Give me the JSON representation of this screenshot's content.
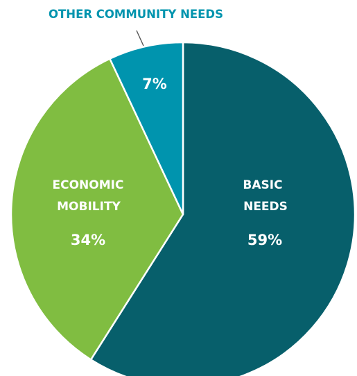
{
  "chart_data": {
    "type": "pie",
    "slices": [
      {
        "id": "basic",
        "label_lines": [
          "BASIC",
          "NEEDS"
        ],
        "pct_label": "59%",
        "value": 59,
        "color": "#075f6b"
      },
      {
        "id": "economic",
        "label_lines": [
          "ECONOMIC",
          "MOBILITY"
        ],
        "pct_label": "34%",
        "value": 34,
        "color": "#80bd41"
      },
      {
        "id": "other",
        "label_lines": [],
        "pct_label": "7%",
        "value": 7,
        "color": "#0094ae"
      }
    ],
    "callout": {
      "text": "OTHER COMMUNITY NEEDS",
      "color": "#0094ae",
      "slice": "other"
    },
    "legend": "none"
  }
}
